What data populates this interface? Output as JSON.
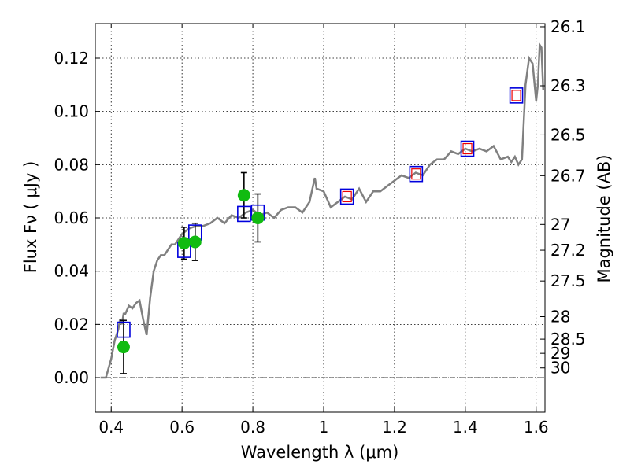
{
  "chart_data": {
    "type": "scatter",
    "xlabel": "Wavelength  λ (μm)",
    "ylabel": "Flux  Fν  ( μJy )",
    "ylabel_right": "Magnitude (AB)",
    "xlim": [
      0.355,
      1.625
    ],
    "ylim": [
      -0.013,
      0.133
    ],
    "x_ticks": [
      0.4,
      0.6,
      0.8,
      1.0,
      1.2,
      1.4,
      1.6
    ],
    "x_tick_labels": [
      "0.4",
      "0.6",
      "0.8",
      "1",
      "1.2",
      "1.4",
      "1.6"
    ],
    "y_ticks": [
      0.0,
      0.02,
      0.04,
      0.06,
      0.08,
      0.1,
      0.12
    ],
    "y_tick_labels": [
      "0.00",
      "0.02",
      "0.04",
      "0.06",
      "0.08",
      "0.10",
      "0.12"
    ],
    "mag_ticks": [
      "26.1",
      "26.3",
      "26.5",
      "26.7",
      "27",
      "27.2",
      "27.5",
      "28",
      "28.5",
      "29",
      "30"
    ],
    "grid": true,
    "colors": {
      "model": "#808080",
      "observed": "#11bb11",
      "model_box": "#0000dd",
      "model_box_inner": "#ee0000",
      "errorbar": "#000000"
    },
    "model_spectrum": {
      "x": [
        0.37,
        0.385,
        0.4,
        0.41,
        0.42,
        0.425,
        0.43,
        0.435,
        0.44,
        0.45,
        0.46,
        0.47,
        0.48,
        0.49,
        0.5,
        0.51,
        0.52,
        0.53,
        0.54,
        0.55,
        0.56,
        0.57,
        0.58,
        0.59,
        0.6,
        0.62,
        0.64,
        0.66,
        0.68,
        0.7,
        0.72,
        0.74,
        0.76,
        0.78,
        0.8,
        0.82,
        0.84,
        0.86,
        0.88,
        0.9,
        0.92,
        0.94,
        0.96,
        0.97,
        0.975,
        0.98,
        1.0,
        1.02,
        1.04,
        1.06,
        1.08,
        1.1,
        1.12,
        1.14,
        1.16,
        1.18,
        1.2,
        1.22,
        1.24,
        1.26,
        1.28,
        1.3,
        1.32,
        1.34,
        1.36,
        1.38,
        1.4,
        1.42,
        1.44,
        1.46,
        1.48,
        1.5,
        1.52,
        1.53,
        1.54,
        1.55,
        1.56,
        1.57,
        1.58,
        1.59,
        1.6,
        1.605,
        1.61,
        1.615,
        1.62
      ],
      "y": [
        0.0,
        0.0,
        0.007,
        0.014,
        0.018,
        0.022,
        0.02,
        0.024,
        0.024,
        0.027,
        0.026,
        0.028,
        0.029,
        0.022,
        0.016,
        0.03,
        0.04,
        0.044,
        0.046,
        0.046,
        0.048,
        0.05,
        0.05,
        0.052,
        0.054,
        0.056,
        0.057,
        0.057,
        0.058,
        0.06,
        0.058,
        0.061,
        0.06,
        0.062,
        0.063,
        0.061,
        0.062,
        0.06,
        0.063,
        0.064,
        0.064,
        0.062,
        0.066,
        0.072,
        0.075,
        0.071,
        0.07,
        0.064,
        0.066,
        0.068,
        0.067,
        0.071,
        0.066,
        0.07,
        0.07,
        0.072,
        0.074,
        0.076,
        0.075,
        0.077,
        0.076,
        0.08,
        0.082,
        0.082,
        0.085,
        0.084,
        0.086,
        0.085,
        0.086,
        0.085,
        0.087,
        0.082,
        0.083,
        0.081,
        0.083,
        0.08,
        0.082,
        0.11,
        0.12,
        0.118,
        0.104,
        0.11,
        0.125,
        0.124,
        0.108
      ]
    },
    "observed_points": [
      {
        "x": 0.435,
        "y": 0.0115,
        "yerr_low": 0.01,
        "yerr_high": 0.01
      },
      {
        "x": 0.606,
        "y": 0.0505,
        "yerr_low": 0.006,
        "yerr_high": 0.006
      },
      {
        "x": 0.637,
        "y": 0.051,
        "yerr_low": 0.007,
        "yerr_high": 0.007
      },
      {
        "x": 0.775,
        "y": 0.0685,
        "yerr_low": 0.0085,
        "yerr_high": 0.0085
      },
      {
        "x": 0.814,
        "y": 0.06,
        "yerr_low": 0.009,
        "yerr_high": 0.009
      }
    ],
    "model_points": [
      {
        "x": 0.435,
        "y": 0.018
      },
      {
        "x": 0.606,
        "y": 0.048
      },
      {
        "x": 0.637,
        "y": 0.0545
      },
      {
        "x": 0.775,
        "y": 0.0615
      },
      {
        "x": 0.814,
        "y": 0.062
      },
      {
        "x": 1.066,
        "y": 0.068
      },
      {
        "x": 1.261,
        "y": 0.0765
      },
      {
        "x": 1.406,
        "y": 0.086
      },
      {
        "x": 1.544,
        "y": 0.106
      }
    ]
  }
}
